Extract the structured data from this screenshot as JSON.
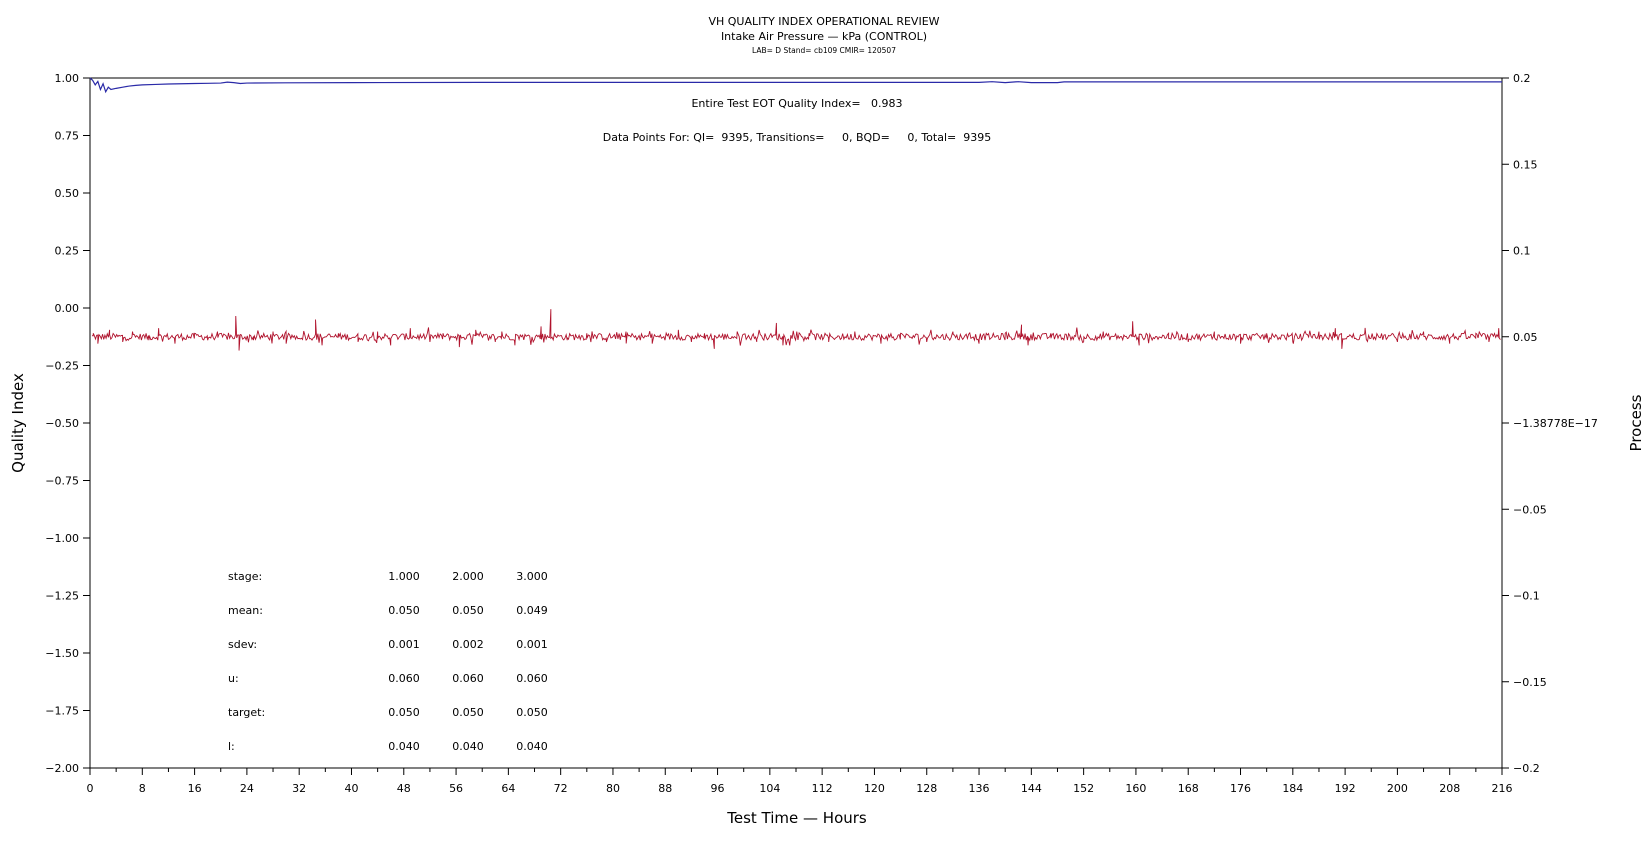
{
  "chart_data": {
    "type": "line",
    "title": "VH QUALITY INDEX OPERATIONAL REVIEW",
    "subtitle": "Intake Air Pressure — kPa (CONTROL)",
    "subsubtitle": "LAB= D Stand= cb109 CMIR= 120507",
    "xlabel": "Test Time — Hours",
    "ylabel": "Quality Index",
    "y2label": "Process",
    "xlim": [
      0,
      216
    ],
    "ylim": [
      -2.0,
      1.0
    ],
    "y2lim": [
      -0.2,
      0.2
    ],
    "x_ticks": [
      0,
      8,
      16,
      24,
      32,
      40,
      48,
      56,
      64,
      72,
      80,
      88,
      96,
      104,
      112,
      120,
      128,
      136,
      144,
      152,
      160,
      168,
      176,
      184,
      192,
      200,
      208,
      216
    ],
    "y_ticks": [
      "1.00",
      "0.75",
      "0.50",
      "0.25",
      "0.00",
      "−0.25",
      "−0.50",
      "−0.75",
      "−1.00",
      "−1.25",
      "−1.50",
      "−1.75",
      "−2.00"
    ],
    "y_tick_values": [
      1.0,
      0.75,
      0.5,
      0.25,
      0.0,
      -0.25,
      -0.5,
      -0.75,
      -1.0,
      -1.25,
      -1.5,
      -1.75,
      -2.0
    ],
    "y2_ticks": [
      "0.2",
      "0.15",
      "0.1",
      "0.05",
      "−1.38778E−17",
      "−0.05",
      "−0.1",
      "−0.15",
      "−0.2"
    ],
    "y2_tick_values": [
      0.2,
      0.15,
      0.1,
      0.05,
      0.0,
      -0.05,
      -0.1,
      -0.15,
      -0.2
    ],
    "grid": false,
    "annotations": {
      "eot": "Entire Test EOT Quality Index=   0.983",
      "points": "Data Points For: QI=  9395, Transitions=     0, BQD=     0, Total=  9395"
    },
    "series": [
      {
        "color": "#2a2aa8",
        "axis": "left",
        "points": [
          [
            0,
            1.0
          ],
          [
            0.4,
            0.99
          ],
          [
            0.8,
            0.97
          ],
          [
            1.2,
            0.985
          ],
          [
            1.6,
            0.95
          ],
          [
            2.0,
            0.975
          ],
          [
            2.4,
            0.94
          ],
          [
            2.8,
            0.96
          ],
          [
            3.2,
            0.95
          ],
          [
            4,
            0.955
          ],
          [
            5,
            0.96
          ],
          [
            6,
            0.965
          ],
          [
            7,
            0.968
          ],
          [
            8,
            0.97
          ],
          [
            10,
            0.972
          ],
          [
            12,
            0.974
          ],
          [
            14,
            0.975
          ],
          [
            16,
            0.976
          ],
          [
            18,
            0.977
          ],
          [
            20,
            0.978
          ],
          [
            21,
            0.982
          ],
          [
            22,
            0.98
          ],
          [
            23,
            0.976
          ],
          [
            24,
            0.978
          ],
          [
            30,
            0.979
          ],
          [
            40,
            0.98
          ],
          [
            60,
            0.981
          ],
          [
            80,
            0.981
          ],
          [
            100,
            0.981
          ],
          [
            120,
            0.981
          ],
          [
            136,
            0.981
          ],
          [
            138,
            0.984
          ],
          [
            140,
            0.98
          ],
          [
            142,
            0.984
          ],
          [
            144,
            0.98
          ],
          [
            148,
            0.98
          ],
          [
            149,
            0.983
          ],
          [
            160,
            0.983
          ],
          [
            180,
            0.983
          ],
          [
            200,
            0.983
          ],
          [
            216,
            0.983
          ]
        ]
      },
      {
        "color": "#b0122c",
        "axis": "right",
        "baseline": 0.05,
        "spikes": [
          [
            0.5,
            0.052
          ],
          [
            1.2,
            0.046
          ],
          [
            3,
            0.054
          ],
          [
            5,
            0.047
          ],
          [
            6.5,
            0.053
          ],
          [
            9,
            0.048
          ],
          [
            10.5,
            0.055
          ],
          [
            13,
            0.046
          ],
          [
            16,
            0.052
          ],
          [
            18,
            0.048
          ],
          [
            19.5,
            0.053
          ],
          [
            22.3,
            0.062
          ],
          [
            22.8,
            0.042
          ],
          [
            25,
            0.048
          ],
          [
            28,
            0.053
          ],
          [
            30,
            0.046
          ],
          [
            34.5,
            0.06
          ],
          [
            35.5,
            0.045
          ],
          [
            38,
            0.052
          ],
          [
            41,
            0.047
          ],
          [
            44,
            0.053
          ],
          [
            46,
            0.045
          ],
          [
            49,
            0.055
          ],
          [
            52,
            0.047
          ],
          [
            54,
            0.052
          ],
          [
            56.5,
            0.044
          ],
          [
            59,
            0.054
          ],
          [
            62,
            0.047
          ],
          [
            63,
            0.053
          ],
          [
            65,
            0.045
          ],
          [
            69,
            0.056
          ],
          [
            70.5,
            0.066
          ],
          [
            73,
            0.048
          ],
          [
            76,
            0.052
          ],
          [
            79,
            0.047
          ],
          [
            82,
            0.053
          ],
          [
            86,
            0.046
          ],
          [
            90,
            0.054
          ],
          [
            92,
            0.047
          ],
          [
            94,
            0.052
          ],
          [
            95.5,
            0.043
          ],
          [
            99,
            0.053
          ],
          [
            102,
            0.047
          ],
          [
            105,
            0.058
          ],
          [
            106,
            0.045
          ],
          [
            110,
            0.052
          ],
          [
            113,
            0.047
          ],
          [
            117,
            0.053
          ],
          [
            121,
            0.046
          ],
          [
            124,
            0.052
          ],
          [
            128,
            0.047
          ],
          [
            132,
            0.053
          ],
          [
            136,
            0.046
          ],
          [
            140,
            0.052
          ],
          [
            142.5,
            0.057
          ],
          [
            143.5,
            0.045
          ],
          [
            147,
            0.052
          ],
          [
            152,
            0.047
          ],
          [
            155,
            0.053
          ],
          [
            159.5,
            0.059
          ],
          [
            160.5,
            0.045
          ],
          [
            165,
            0.052
          ],
          [
            168,
            0.047
          ],
          [
            172,
            0.053
          ],
          [
            176,
            0.046
          ],
          [
            180,
            0.052
          ],
          [
            184,
            0.047
          ],
          [
            188,
            0.053
          ],
          [
            190.5,
            0.055
          ],
          [
            191.5,
            0.043
          ],
          [
            195,
            0.052
          ],
          [
            200,
            0.047
          ],
          [
            204,
            0.053
          ],
          [
            208,
            0.046
          ],
          [
            212,
            0.052
          ],
          [
            214,
            0.047
          ],
          [
            215.5,
            0.055
          ],
          [
            215.8,
            0.042
          ]
        ]
      }
    ],
    "stats_table": {
      "rows": [
        {
          "label": "stage:",
          "values": [
            "1.000",
            "2.000",
            "3.000"
          ]
        },
        {
          "label": "mean:",
          "values": [
            "0.050",
            "0.050",
            "0.049"
          ]
        },
        {
          "label": "sdev:",
          "values": [
            "0.001",
            "0.002",
            "0.001"
          ]
        },
        {
          "label": "u:",
          "values": [
            "0.060",
            "0.060",
            "0.060"
          ]
        },
        {
          "label": "target:",
          "values": [
            "0.050",
            "0.050",
            "0.050"
          ]
        },
        {
          "label": "l:",
          "values": [
            "0.040",
            "0.040",
            "0.040"
          ]
        }
      ]
    }
  }
}
